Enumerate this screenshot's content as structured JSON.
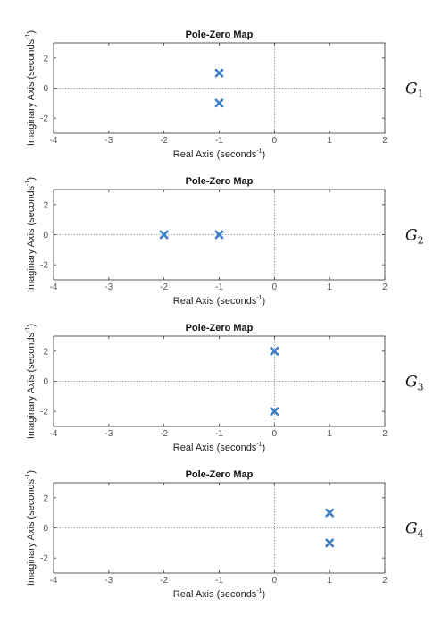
{
  "chart_data": [
    {
      "type": "scatter",
      "title": "Pole-Zero Map",
      "xlabel": "Real Axis (seconds",
      "ylabel": "Imaginary Axis (seconds",
      "axis_unit_superscript": "-1",
      "xlim": [
        -4,
        2
      ],
      "ylim": [
        -3,
        3
      ],
      "xticks": [
        -4,
        -3,
        -2,
        -1,
        0,
        1,
        2
      ],
      "yticks": [
        -2,
        0,
        2
      ],
      "grid": false,
      "marker": "x",
      "marker_color": "#3d7fc7",
      "side_label": "G",
      "side_label_sub": "1",
      "points": [
        {
          "x": -1,
          "y": 1
        },
        {
          "x": -1,
          "y": -1
        }
      ]
    },
    {
      "type": "scatter",
      "title": "Pole-Zero Map",
      "xlabel": "Real Axis (seconds",
      "ylabel": "Imaginary Axis (seconds",
      "axis_unit_superscript": "-1",
      "xlim": [
        -4,
        2
      ],
      "ylim": [
        -3,
        3
      ],
      "xticks": [
        -4,
        -3,
        -2,
        -1,
        0,
        1,
        2
      ],
      "yticks": [
        -2,
        0,
        2
      ],
      "grid": false,
      "marker": "x",
      "marker_color": "#3d7fc7",
      "side_label": "G",
      "side_label_sub": "2",
      "points": [
        {
          "x": -2,
          "y": 0
        },
        {
          "x": -1,
          "y": 0
        }
      ]
    },
    {
      "type": "scatter",
      "title": "Pole-Zero Map",
      "xlabel": "Real Axis (seconds",
      "ylabel": "Imaginary Axis (seconds",
      "axis_unit_superscript": "-1",
      "xlim": [
        -4,
        2
      ],
      "ylim": [
        -3,
        3
      ],
      "xticks": [
        -4,
        -3,
        -2,
        -1,
        0,
        1,
        2
      ],
      "yticks": [
        -2,
        0,
        2
      ],
      "grid": false,
      "marker": "x",
      "marker_color": "#3d7fc7",
      "side_label": "G",
      "side_label_sub": "3",
      "points": [
        {
          "x": 0,
          "y": 2
        },
        {
          "x": 0,
          "y": -2
        }
      ]
    },
    {
      "type": "scatter",
      "title": "Pole-Zero Map",
      "xlabel": "Real Axis (seconds",
      "ylabel": "Imaginary Axis (seconds",
      "axis_unit_superscript": "-1",
      "xlim": [
        -4,
        2
      ],
      "ylim": [
        -3,
        3
      ],
      "xticks": [
        -4,
        -3,
        -2,
        -1,
        0,
        1,
        2
      ],
      "yticks": [
        -2,
        0,
        2
      ],
      "grid": false,
      "marker": "x",
      "marker_color": "#3d7fc7",
      "side_label": "G",
      "side_label_sub": "4",
      "points": [
        {
          "x": 1,
          "y": 1
        },
        {
          "x": 1,
          "y": -1
        }
      ]
    }
  ]
}
